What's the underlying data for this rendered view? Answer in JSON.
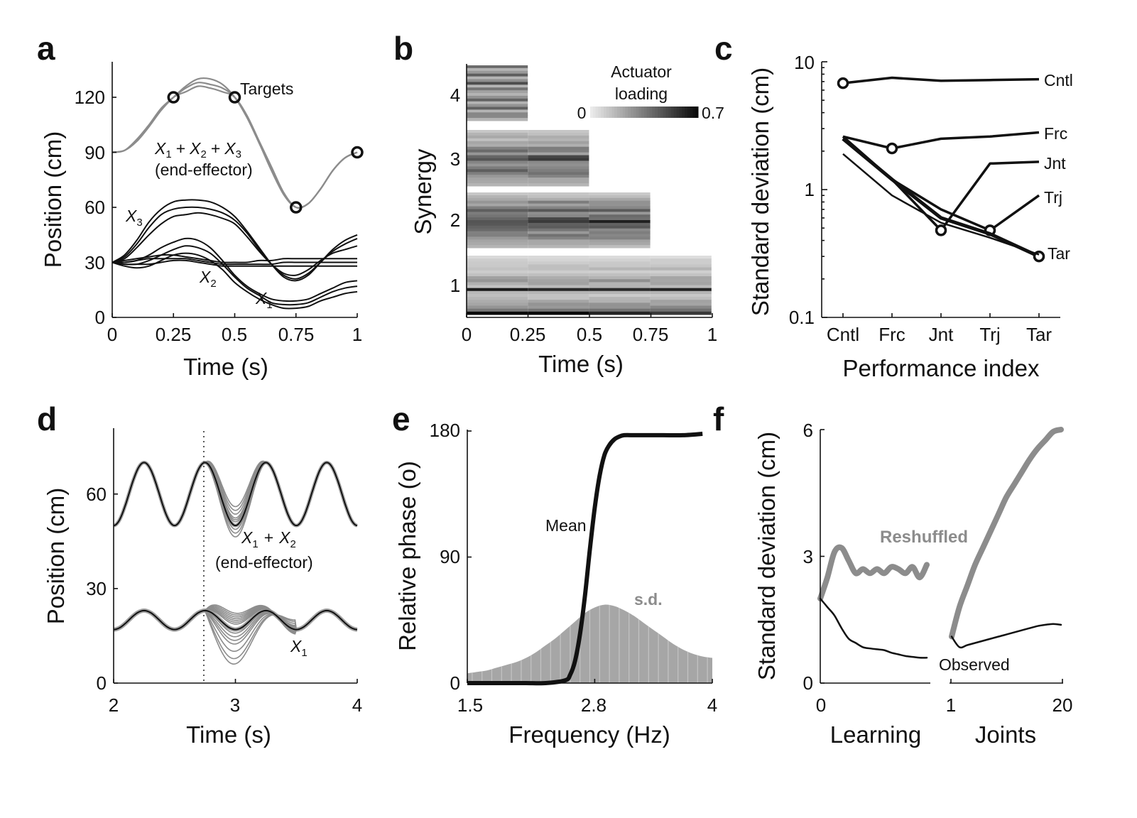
{
  "panel_letters": [
    "a",
    "b",
    "c",
    "d",
    "e",
    "f"
  ],
  "colors": {
    "black": "#111111",
    "gray": "#8c8c8c",
    "sd_fill": "#a6a6a6"
  },
  "chart_data": [
    {
      "id": "a",
      "type": "line",
      "xlabel": "Time (s)",
      "ylabel": "Position (cm)",
      "xlim": [
        0,
        1
      ],
      "ylim": [
        0,
        140
      ],
      "xticks": [
        "0",
        "0.25",
        "0.5",
        "0.75",
        "1"
      ],
      "yticks": [
        "0",
        "30",
        "60",
        "90",
        "120"
      ],
      "targets": [
        [
          0.25,
          120
        ],
        [
          0.5,
          120
        ],
        [
          0.75,
          60
        ],
        [
          1,
          90
        ]
      ],
      "annotations": {
        "targets": "Targets",
        "sum_x": "X",
        "sum_plus": "+",
        "sum_1": "1",
        "sum_2": "2",
        "sum_3": "3",
        "end_effector": "(end-effector)",
        "x": "X",
        "x1": "1",
        "x2": "2",
        "x3": "3"
      },
      "series": [
        {
          "color": "#8c8c8c",
          "x": [
            0,
            0.05,
            0.1,
            0.15,
            0.2,
            0.25,
            0.3,
            0.35,
            0.4,
            0.45,
            0.5,
            0.55,
            0.6,
            0.65,
            0.7,
            0.75,
            0.8,
            0.85,
            0.9,
            0.95,
            1
          ],
          "y": [
            90,
            91,
            96,
            104,
            113,
            120,
            126,
            130,
            130,
            127,
            120,
            109,
            95,
            80,
            67,
            60,
            62,
            70,
            80,
            87,
            90
          ]
        },
        {
          "color": "#8c8c8c",
          "x": [
            0,
            0.05,
            0.1,
            0.15,
            0.2,
            0.25,
            0.3,
            0.35,
            0.4,
            0.45,
            0.5,
            0.55,
            0.6,
            0.65,
            0.7,
            0.75,
            0.8,
            0.85,
            0.9,
            0.95,
            1
          ],
          "y": [
            90,
            91,
            97,
            105,
            114,
            120,
            125,
            128,
            127,
            125,
            120,
            109,
            95,
            81,
            67,
            60,
            62,
            70,
            80,
            87,
            90
          ]
        },
        {
          "color": "#8c8c8c",
          "x": [
            0,
            0.05,
            0.1,
            0.15,
            0.2,
            0.25,
            0.3,
            0.35,
            0.4,
            0.45,
            0.5,
            0.55,
            0.6,
            0.65,
            0.7,
            0.75,
            0.8,
            0.85,
            0.9,
            0.95,
            1
          ],
          "y": [
            90,
            91,
            96,
            104,
            113,
            120,
            123,
            126,
            125,
            123,
            120,
            110,
            96,
            82,
            68,
            60,
            62,
            70,
            80,
            87,
            90
          ]
        },
        {
          "color": "#111111",
          "x": [
            0,
            0.05,
            0.1,
            0.15,
            0.2,
            0.25,
            0.3,
            0.35,
            0.4,
            0.45,
            0.5,
            0.55,
            0.6,
            0.65,
            0.7,
            0.75,
            0.8,
            0.85,
            0.9,
            0.95,
            1
          ],
          "y": [
            30,
            34,
            42,
            52,
            59,
            63,
            64,
            64,
            63,
            60,
            55,
            47,
            38,
            29,
            22,
            20,
            23,
            30,
            37,
            42,
            45
          ]
        },
        {
          "color": "#111111",
          "x": [
            0,
            0.05,
            0.1,
            0.15,
            0.2,
            0.25,
            0.3,
            0.35,
            0.4,
            0.45,
            0.5,
            0.55,
            0.6,
            0.65,
            0.7,
            0.75,
            0.8,
            0.85,
            0.9,
            0.95,
            1
          ],
          "y": [
            30,
            33,
            40,
            49,
            56,
            59,
            60,
            60,
            59,
            57,
            53,
            46,
            37,
            29,
            23,
            21,
            24,
            30,
            36,
            40,
            43
          ]
        },
        {
          "color": "#111111",
          "x": [
            0,
            0.05,
            0.1,
            0.15,
            0.2,
            0.25,
            0.3,
            0.35,
            0.4,
            0.45,
            0.5,
            0.55,
            0.6,
            0.65,
            0.7,
            0.75,
            0.8,
            0.85,
            0.9,
            0.95,
            1
          ],
          "y": [
            30,
            32,
            38,
            45,
            51,
            55,
            56,
            57,
            56,
            54,
            51,
            44,
            36,
            29,
            24,
            23,
            26,
            31,
            35,
            37,
            39
          ]
        },
        {
          "color": "#111111",
          "x": [
            0,
            0.05,
            0.1,
            0.15,
            0.2,
            0.25,
            0.3,
            0.35,
            0.4,
            0.45,
            0.5,
            0.55,
            0.6,
            0.65,
            0.7,
            0.75,
            0.8,
            0.85,
            0.9,
            0.95,
            1
          ],
          "y": [
            30,
            30,
            31,
            34,
            38,
            41,
            43,
            42,
            38,
            31,
            23,
            17,
            13,
            10,
            9,
            9,
            10,
            13,
            16,
            19,
            20
          ]
        },
        {
          "color": "#111111",
          "x": [
            0,
            0.05,
            0.1,
            0.15,
            0.2,
            0.25,
            0.3,
            0.35,
            0.4,
            0.45,
            0.5,
            0.55,
            0.6,
            0.65,
            0.7,
            0.75,
            0.8,
            0.85,
            0.9,
            0.95,
            1
          ],
          "y": [
            30,
            29,
            29,
            31,
            34,
            37,
            39,
            38,
            35,
            29,
            22,
            16,
            12,
            8,
            7,
            7,
            8,
            11,
            14,
            16,
            17
          ]
        },
        {
          "color": "#111111",
          "x": [
            0,
            0.05,
            0.1,
            0.15,
            0.2,
            0.25,
            0.3,
            0.35,
            0.4,
            0.45,
            0.5,
            0.55,
            0.6,
            0.65,
            0.7,
            0.75,
            0.8,
            0.85,
            0.9,
            0.95,
            1
          ],
          "y": [
            30,
            28,
            27,
            28,
            31,
            34,
            35,
            34,
            31,
            26,
            19,
            14,
            10,
            7,
            5,
            5,
            6,
            9,
            11,
            13,
            14
          ]
        },
        {
          "color": "#111111",
          "x": [
            0,
            0.05,
            0.1,
            0.15,
            0.2,
            0.25,
            0.3,
            0.35,
            0.4,
            0.45,
            0.5,
            0.55,
            0.6,
            0.65,
            0.7,
            0.75,
            0.8,
            0.85,
            0.9,
            0.95,
            1
          ],
          "y": [
            30,
            31,
            32,
            33,
            34,
            34,
            33,
            32,
            31,
            30,
            30,
            30,
            31,
            31,
            32,
            32,
            32,
            32,
            32,
            32,
            32
          ]
        },
        {
          "color": "#111111",
          "x": [
            0,
            0.05,
            0.1,
            0.15,
            0.2,
            0.25,
            0.3,
            0.35,
            0.4,
            0.45,
            0.5,
            0.55,
            0.6,
            0.65,
            0.7,
            0.75,
            0.8,
            0.85,
            0.9,
            0.95,
            1
          ],
          "y": [
            30,
            30,
            31,
            32,
            32,
            32,
            32,
            31,
            30,
            29,
            29,
            29,
            29,
            29,
            30,
            30,
            30,
            30,
            30,
            30,
            30
          ]
        },
        {
          "color": "#111111",
          "x": [
            0,
            0.05,
            0.1,
            0.15,
            0.2,
            0.25,
            0.3,
            0.35,
            0.4,
            0.45,
            0.5,
            0.55,
            0.6,
            0.65,
            0.7,
            0.75,
            0.8,
            0.85,
            0.9,
            0.95,
            1
          ],
          "y": [
            30,
            29,
            29,
            29,
            30,
            31,
            31,
            30,
            29,
            28,
            28,
            28,
            28,
            28,
            28,
            28,
            28,
            28,
            28,
            28,
            28
          ]
        }
      ]
    },
    {
      "id": "b",
      "type": "heatmap",
      "xlabel": "Time (s)",
      "ylabel": "Synergy",
      "xlim": [
        0,
        1
      ],
      "xticks": [
        "0",
        "0.25",
        "0.5",
        "0.75",
        "1"
      ],
      "yticks": [
        "1",
        "2",
        "3",
        "4"
      ],
      "colorbar": {
        "label_line1": "Actuator",
        "label_line2": "loading",
        "min": "0",
        "max": "0.7",
        "range": [
          0,
          0.7
        ]
      },
      "synergies": [
        {
          "synergy": 4,
          "blocks": 1,
          "rows": [
            0.35,
            0.15,
            0.25,
            0.5,
            0.2,
            0.3,
            0.45,
            0.15,
            0.35,
            0.25,
            0.2,
            0.3,
            0.4,
            0.15,
            0.25,
            0.45,
            0.2,
            0.35,
            0.3,
            0.15
          ]
        },
        {
          "synergy": 3,
          "blocks": 2,
          "rows": [
            0.1,
            0.15,
            0.2,
            0.15,
            0.25,
            0.2,
            0.3,
            0.35,
            0.25,
            0.45,
            0.55,
            0.35,
            0.25,
            0.3,
            0.4,
            0.35,
            0.3,
            0.25,
            0.2,
            0.15
          ]
        },
        {
          "synergy": 2,
          "blocks": 3,
          "rows": [
            0.1,
            0.15,
            0.2,
            0.3,
            0.25,
            0.35,
            0.4,
            0.3,
            0.35,
            0.45,
            0.55,
            0.5,
            0.4,
            0.35,
            0.3,
            0.35,
            0.3,
            0.25,
            0.2,
            0.15
          ]
        },
        {
          "synergy": 1,
          "blocks": 4,
          "rows": [
            0.05,
            0.08,
            0.1,
            0.12,
            0.15,
            0.1,
            0.12,
            0.2,
            0.25,
            0.2,
            0.15,
            0.7,
            0.15,
            0.12,
            0.15,
            0.2,
            0.25,
            0.3,
            0.35,
            0.65
          ]
        }
      ]
    },
    {
      "id": "c",
      "type": "line",
      "xlabel": "Performance index",
      "ylabel": "Standard deviation (cm)",
      "yscale": "log",
      "ylim": [
        0.1,
        10
      ],
      "categories": [
        "Cntl",
        "Frc",
        "Jnt",
        "Trj",
        "Tar"
      ],
      "yticks": [
        "0.1",
        "1",
        "10"
      ],
      "series": [
        {
          "name": "Cntl",
          "values": [
            6.8,
            7.5,
            7.1,
            7.2,
            7.3
          ],
          "width": 3.5,
          "marker": 0
        },
        {
          "name": "Frc",
          "values": [
            2.6,
            2.1,
            2.5,
            2.6,
            2.8
          ],
          "width": 3.5,
          "marker": 1
        },
        {
          "name": "Jnt",
          "values": [
            2.6,
            1.2,
            0.48,
            1.6,
            1.65
          ],
          "width": 3.5,
          "marker": 2
        },
        {
          "name": "Trj",
          "values": [
            2.5,
            1.2,
            0.7,
            0.48,
            0.9
          ],
          "width": 3.5,
          "marker": 3
        },
        {
          "name": "Tar",
          "values": [
            2.5,
            1.2,
            0.6,
            0.45,
            0.3
          ],
          "width": 5,
          "marker": 4
        },
        {
          "name": "",
          "values": [
            1.9,
            0.9,
            0.55,
            0.42,
            0.31
          ],
          "width": 2.5,
          "marker": -1
        }
      ]
    },
    {
      "id": "d",
      "type": "line",
      "xlabel": "Time (s)",
      "ylabel": "Position (cm)",
      "xlim": [
        2,
        4
      ],
      "ylim": [
        0,
        80
      ],
      "xticks": [
        "2",
        "3",
        "4"
      ],
      "yticks": [
        "0",
        "30",
        "60"
      ],
      "perturbation_time": 2.75,
      "annotations": {
        "x": "X",
        "plus": "+",
        "sub1": "1",
        "sub2": "2",
        "end_effector": "(end-effector)"
      },
      "upper": {
        "base": 60,
        "amp": 10,
        "freq_hz": 2,
        "phase": -0.25,
        "gray_peak_offsets": [
          -2,
          -1,
          0,
          1,
          2,
          3,
          4,
          5,
          -3,
          1.5
        ]
      },
      "lower": {
        "base": 20,
        "amp": 3,
        "freq_hz": 2,
        "phase": -0.25,
        "gray_disturbance": [
          3,
          -4,
          6,
          -8,
          9,
          -12,
          5,
          -16,
          7,
          -19,
          4,
          -6,
          8,
          -2
        ]
      }
    },
    {
      "id": "e",
      "type": "area",
      "xlabel": "Frequency (Hz)",
      "ylabel": "Relative phase (o)",
      "xlim": [
        1.5,
        4
      ],
      "ylim": [
        0,
        180
      ],
      "xticks": [
        "1.5",
        "2.8",
        "4"
      ],
      "yticks": [
        "0",
        "90",
        "180"
      ],
      "series": [
        {
          "name": "Mean",
          "x": [
            1.5,
            1.7,
            1.9,
            2.1,
            2.3,
            2.5,
            2.55,
            2.6,
            2.65,
            2.7,
            2.75,
            2.8,
            2.85,
            2.9,
            2.95,
            3.0,
            3.05,
            3.1,
            3.2,
            3.3,
            3.5,
            3.7,
            3.9
          ],
          "y": [
            0,
            0,
            0,
            0,
            0,
            2,
            6,
            16,
            35,
            62,
            95,
            125,
            148,
            163,
            170,
            174,
            176,
            177,
            177,
            177,
            177,
            177,
            178
          ]
        },
        {
          "name": "s.d.",
          "x": [
            1.5,
            1.6,
            1.7,
            1.8,
            1.9,
            2.0,
            2.1,
            2.2,
            2.3,
            2.4,
            2.5,
            2.6,
            2.7,
            2.8,
            2.9,
            3.0,
            3.1,
            3.2,
            3.3,
            3.4,
            3.5,
            3.6,
            3.7,
            3.8,
            3.9,
            4.0
          ],
          "y": [
            7,
            8,
            9,
            11,
            13,
            15,
            18,
            22,
            27,
            32,
            38,
            44,
            50,
            54,
            56,
            55,
            52,
            48,
            43,
            38,
            33,
            28,
            24,
            21,
            19,
            18
          ]
        }
      ]
    },
    {
      "id": "f",
      "type": "line",
      "ylabel": "Standard deviation (cm)",
      "ylim": [
        0,
        6
      ],
      "yticks": [
        "0",
        "3",
        "6"
      ],
      "learning": {
        "xlabel": "Learning",
        "xticks": [
          "0"
        ],
        "reshuffled": [
          2.0,
          2.5,
          3.1,
          3.2,
          2.9,
          2.6,
          2.7,
          2.6,
          2.7,
          2.6,
          2.75,
          2.7,
          2.6,
          2.75,
          2.5,
          2.8
        ],
        "observed": [
          2.0,
          1.8,
          1.6,
          1.3,
          1.05,
          0.95,
          0.85,
          0.82,
          0.8,
          0.78,
          0.72,
          0.68,
          0.64,
          0.62,
          0.6,
          0.6
        ]
      },
      "joints": {
        "xlabel": "Joints",
        "xticks": [
          "1",
          "20"
        ],
        "reshuffled": [
          1.1,
          1.8,
          2.3,
          2.8,
          3.2,
          3.6,
          4.0,
          4.4,
          4.7,
          5.0,
          5.3,
          5.55,
          5.75,
          5.95,
          6.0
        ],
        "observed": [
          1.1,
          0.85,
          0.9,
          0.95,
          1.0,
          1.05,
          1.1,
          1.15,
          1.2,
          1.25,
          1.3,
          1.35,
          1.38,
          1.4,
          1.38
        ]
      },
      "labels": {
        "reshuffled": "Reshuffled",
        "observed": "Observed"
      }
    }
  ]
}
